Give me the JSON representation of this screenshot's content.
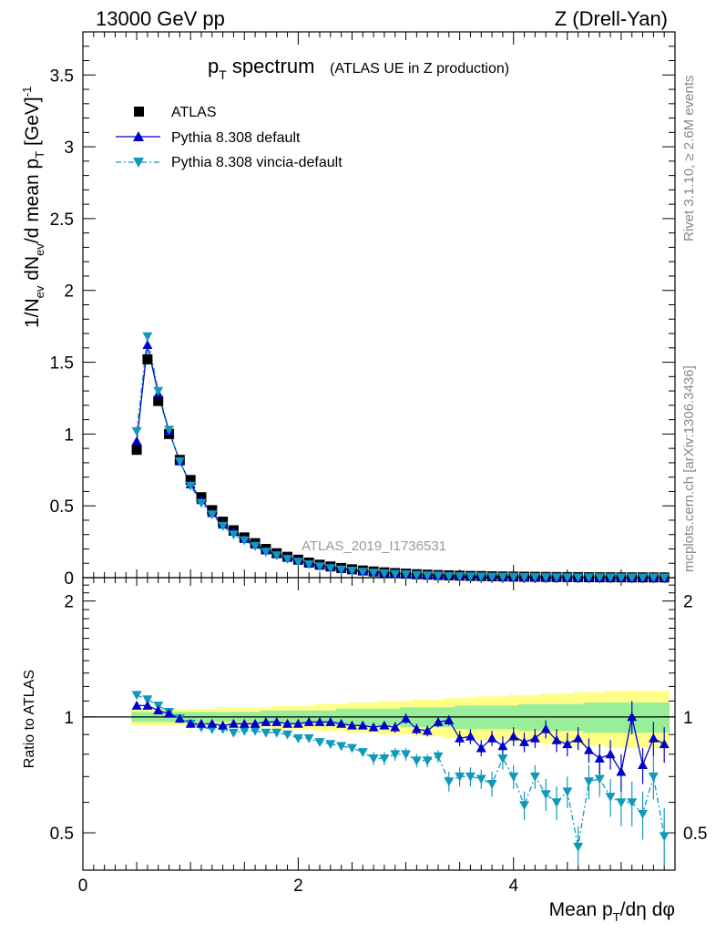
{
  "header": {
    "left": "13000 GeV pp",
    "right": "Z (Drell-Yan)"
  },
  "title": {
    "main": "p",
    "main_sub": "T",
    "main_rest": " spectrum",
    "paren": "(ATLAS UE in Z production)"
  },
  "watermark": "ATLAS_2019_I1736531",
  "side_text": {
    "rivet": "Rivet 3.1.10, ≥ 2.6M events",
    "mcplots": "mcplots.cern.ch [arXiv:1306.3436]"
  },
  "legend": [
    {
      "label": "ATLAS",
      "color": "#000000",
      "marker": "square"
    },
    {
      "label": "Pythia 8.308 default",
      "color": "#0000cc",
      "marker": "triangle-up"
    },
    {
      "label": "Pythia 8.308 vincia-default",
      "color": "#1199bb",
      "marker": "triangle-down"
    }
  ],
  "axes": {
    "top_ylabel": "1/N_ev dN_ev/d mean p_T [GeV]^-1",
    "ratio_ylabel": "Ratio to ATLAS",
    "xlabel": "Mean p_T/dη dφ",
    "top_yticks": [
      "0",
      "0.5",
      "1",
      "1.5",
      "2",
      "2.5",
      "3",
      "3.5"
    ],
    "ratio_yticks_left": [
      "0.5",
      "1",
      "2"
    ],
    "ratio_yticks_right": [
      "0.5",
      "1",
      "2"
    ],
    "xticks": [
      "0",
      "2",
      "4"
    ]
  },
  "chart_data": {
    "type": "scatter",
    "xlim": [
      0,
      5.5
    ],
    "top_ylim": [
      0,
      3.8
    ],
    "ratio_ylim": [
      0.4,
      2.3
    ],
    "ratio_scale": "log",
    "x": [
      0.5,
      0.6,
      0.7,
      0.8,
      0.9,
      1.0,
      1.1,
      1.2,
      1.3,
      1.4,
      1.5,
      1.6,
      1.7,
      1.8,
      1.9,
      2.0,
      2.1,
      2.2,
      2.3,
      2.4,
      2.5,
      2.6,
      2.7,
      2.8,
      2.9,
      3.0,
      3.1,
      3.2,
      3.3,
      3.4,
      3.5,
      3.6,
      3.7,
      3.8,
      3.9,
      4.0,
      4.1,
      4.2,
      4.3,
      4.4,
      4.5,
      4.6,
      4.7,
      4.8,
      4.9,
      5.0,
      5.1,
      5.2,
      5.3,
      5.4
    ],
    "series": [
      {
        "name": "ATLAS",
        "values": [
          0.89,
          1.52,
          1.23,
          1.0,
          0.82,
          0.68,
          0.56,
          0.47,
          0.39,
          0.33,
          0.28,
          0.24,
          0.2,
          0.17,
          0.145,
          0.125,
          0.105,
          0.09,
          0.078,
          0.067,
          0.058,
          0.05,
          0.043,
          0.037,
          0.032,
          0.028,
          0.024,
          0.021,
          0.018,
          0.016,
          0.014,
          0.012,
          0.011,
          0.0095,
          0.0083,
          0.0073,
          0.0064,
          0.0056,
          0.005,
          0.0044,
          0.0039,
          0.0035,
          0.0031,
          0.0028,
          0.0025,
          0.0022,
          0.002,
          0.0018,
          0.0016,
          0.0014
        ]
      },
      {
        "name": "Pythia 8.308 default",
        "values": [
          0.95,
          1.62,
          1.28,
          1.02,
          0.81,
          0.65,
          0.54,
          0.45,
          0.37,
          0.32,
          0.27,
          0.23,
          0.19,
          0.165,
          0.14,
          0.12,
          0.1,
          0.087,
          0.075,
          0.064,
          0.055,
          0.047,
          0.04,
          0.035,
          0.03,
          0.026,
          0.022,
          0.019,
          0.017,
          0.015,
          0.012,
          0.011,
          0.0092,
          0.0084,
          0.0072,
          0.0065,
          0.0055,
          0.0049,
          0.0046,
          0.0038,
          0.0033,
          0.0031,
          0.0026,
          0.0022,
          0.002,
          0.0016,
          0.002,
          0.0014,
          0.0014,
          0.0012
        ]
      },
      {
        "name": "Pythia 8.308 vincia-default",
        "values": [
          1.02,
          1.68,
          1.3,
          1.03,
          0.81,
          0.64,
          0.52,
          0.44,
          0.36,
          0.3,
          0.26,
          0.22,
          0.18,
          0.155,
          0.13,
          0.11,
          0.093,
          0.078,
          0.066,
          0.056,
          0.048,
          0.04,
          0.034,
          0.029,
          0.026,
          0.023,
          0.019,
          0.016,
          0.014,
          0.011,
          0.0097,
          0.0085,
          0.0077,
          0.0065,
          0.0064,
          0.0051,
          0.0038,
          0.0039,
          0.0031,
          0.0026,
          0.0025,
          0.0016,
          0.0021,
          0.0019,
          0.0016,
          0.0013,
          0.0012,
          0.001,
          0.0011,
          0.0007
        ]
      }
    ],
    "ratio": {
      "default": [
        1.07,
        1.07,
        1.04,
        1.02,
        0.99,
        0.96,
        0.96,
        0.96,
        0.95,
        0.96,
        0.96,
        0.96,
        0.97,
        0.97,
        0.96,
        0.96,
        0.97,
        0.97,
        0.97,
        0.96,
        0.95,
        0.95,
        0.94,
        0.95,
        0.94,
        0.99,
        0.93,
        0.92,
        0.97,
        0.98,
        0.88,
        0.89,
        0.83,
        0.88,
        0.84,
        0.89,
        0.86,
        0.88,
        0.93,
        0.87,
        0.85,
        0.88,
        0.82,
        0.78,
        0.8,
        0.72,
        1.0,
        0.75,
        0.88,
        0.85
      ],
      "default_err": [
        0.02,
        0.02,
        0.02,
        0.02,
        0.02,
        0.02,
        0.02,
        0.02,
        0.02,
        0.02,
        0.02,
        0.02,
        0.02,
        0.02,
        0.02,
        0.02,
        0.02,
        0.02,
        0.02,
        0.02,
        0.02,
        0.02,
        0.02,
        0.02,
        0.03,
        0.03,
        0.03,
        0.03,
        0.03,
        0.03,
        0.04,
        0.04,
        0.04,
        0.04,
        0.05,
        0.05,
        0.05,
        0.05,
        0.05,
        0.06,
        0.06,
        0.06,
        0.06,
        0.07,
        0.07,
        0.08,
        0.1,
        0.08,
        0.09,
        0.09
      ],
      "vincia": [
        1.14,
        1.11,
        1.07,
        1.03,
        0.99,
        0.96,
        0.94,
        0.93,
        0.93,
        0.91,
        0.92,
        0.92,
        0.91,
        0.91,
        0.9,
        0.88,
        0.88,
        0.86,
        0.85,
        0.84,
        0.83,
        0.81,
        0.78,
        0.78,
        0.8,
        0.8,
        0.77,
        0.77,
        0.79,
        0.68,
        0.7,
        0.7,
        0.69,
        0.67,
        0.78,
        0.7,
        0.59,
        0.7,
        0.63,
        0.6,
        0.64,
        0.46,
        0.68,
        0.69,
        0.62,
        0.6,
        0.6,
        0.56,
        0.7,
        0.49
      ],
      "vincia_err": [
        0.02,
        0.02,
        0.02,
        0.02,
        0.02,
        0.02,
        0.02,
        0.02,
        0.02,
        0.02,
        0.02,
        0.02,
        0.02,
        0.02,
        0.02,
        0.02,
        0.02,
        0.02,
        0.02,
        0.02,
        0.02,
        0.02,
        0.03,
        0.03,
        0.03,
        0.03,
        0.03,
        0.03,
        0.03,
        0.04,
        0.04,
        0.04,
        0.04,
        0.05,
        0.05,
        0.05,
        0.05,
        0.05,
        0.06,
        0.06,
        0.06,
        0.06,
        0.07,
        0.07,
        0.07,
        0.08,
        0.08,
        0.08,
        0.09,
        0.09
      ],
      "band_inner": [
        0.03,
        0.03,
        0.03,
        0.03,
        0.03,
        0.03,
        0.03,
        0.03,
        0.03,
        0.03,
        0.03,
        0.03,
        0.04,
        0.04,
        0.04,
        0.04,
        0.04,
        0.04,
        0.04,
        0.05,
        0.05,
        0.05,
        0.05,
        0.05,
        0.05,
        0.06,
        0.06,
        0.06,
        0.06,
        0.06,
        0.07,
        0.07,
        0.07,
        0.07,
        0.07,
        0.07,
        0.08,
        0.08,
        0.08,
        0.08,
        0.08,
        0.08,
        0.09,
        0.09,
        0.09,
        0.09,
        0.09,
        0.09,
        0.09,
        0.09
      ],
      "band_outer": [
        0.05,
        0.05,
        0.05,
        0.05,
        0.05,
        0.05,
        0.05,
        0.05,
        0.06,
        0.06,
        0.06,
        0.06,
        0.06,
        0.07,
        0.07,
        0.07,
        0.07,
        0.08,
        0.08,
        0.08,
        0.09,
        0.09,
        0.09,
        0.1,
        0.1,
        0.1,
        0.11,
        0.11,
        0.11,
        0.12,
        0.12,
        0.12,
        0.13,
        0.13,
        0.13,
        0.14,
        0.14,
        0.14,
        0.15,
        0.15,
        0.15,
        0.16,
        0.16,
        0.16,
        0.17,
        0.17,
        0.17,
        0.17,
        0.17,
        0.17
      ]
    },
    "colors": {
      "atlas": "#000000",
      "default": "#0000cc",
      "vincia": "#1199bb",
      "band_inner": "#99ee99",
      "band_outer": "#ffff88"
    },
    "grid": false,
    "legend_position": "top-left"
  }
}
